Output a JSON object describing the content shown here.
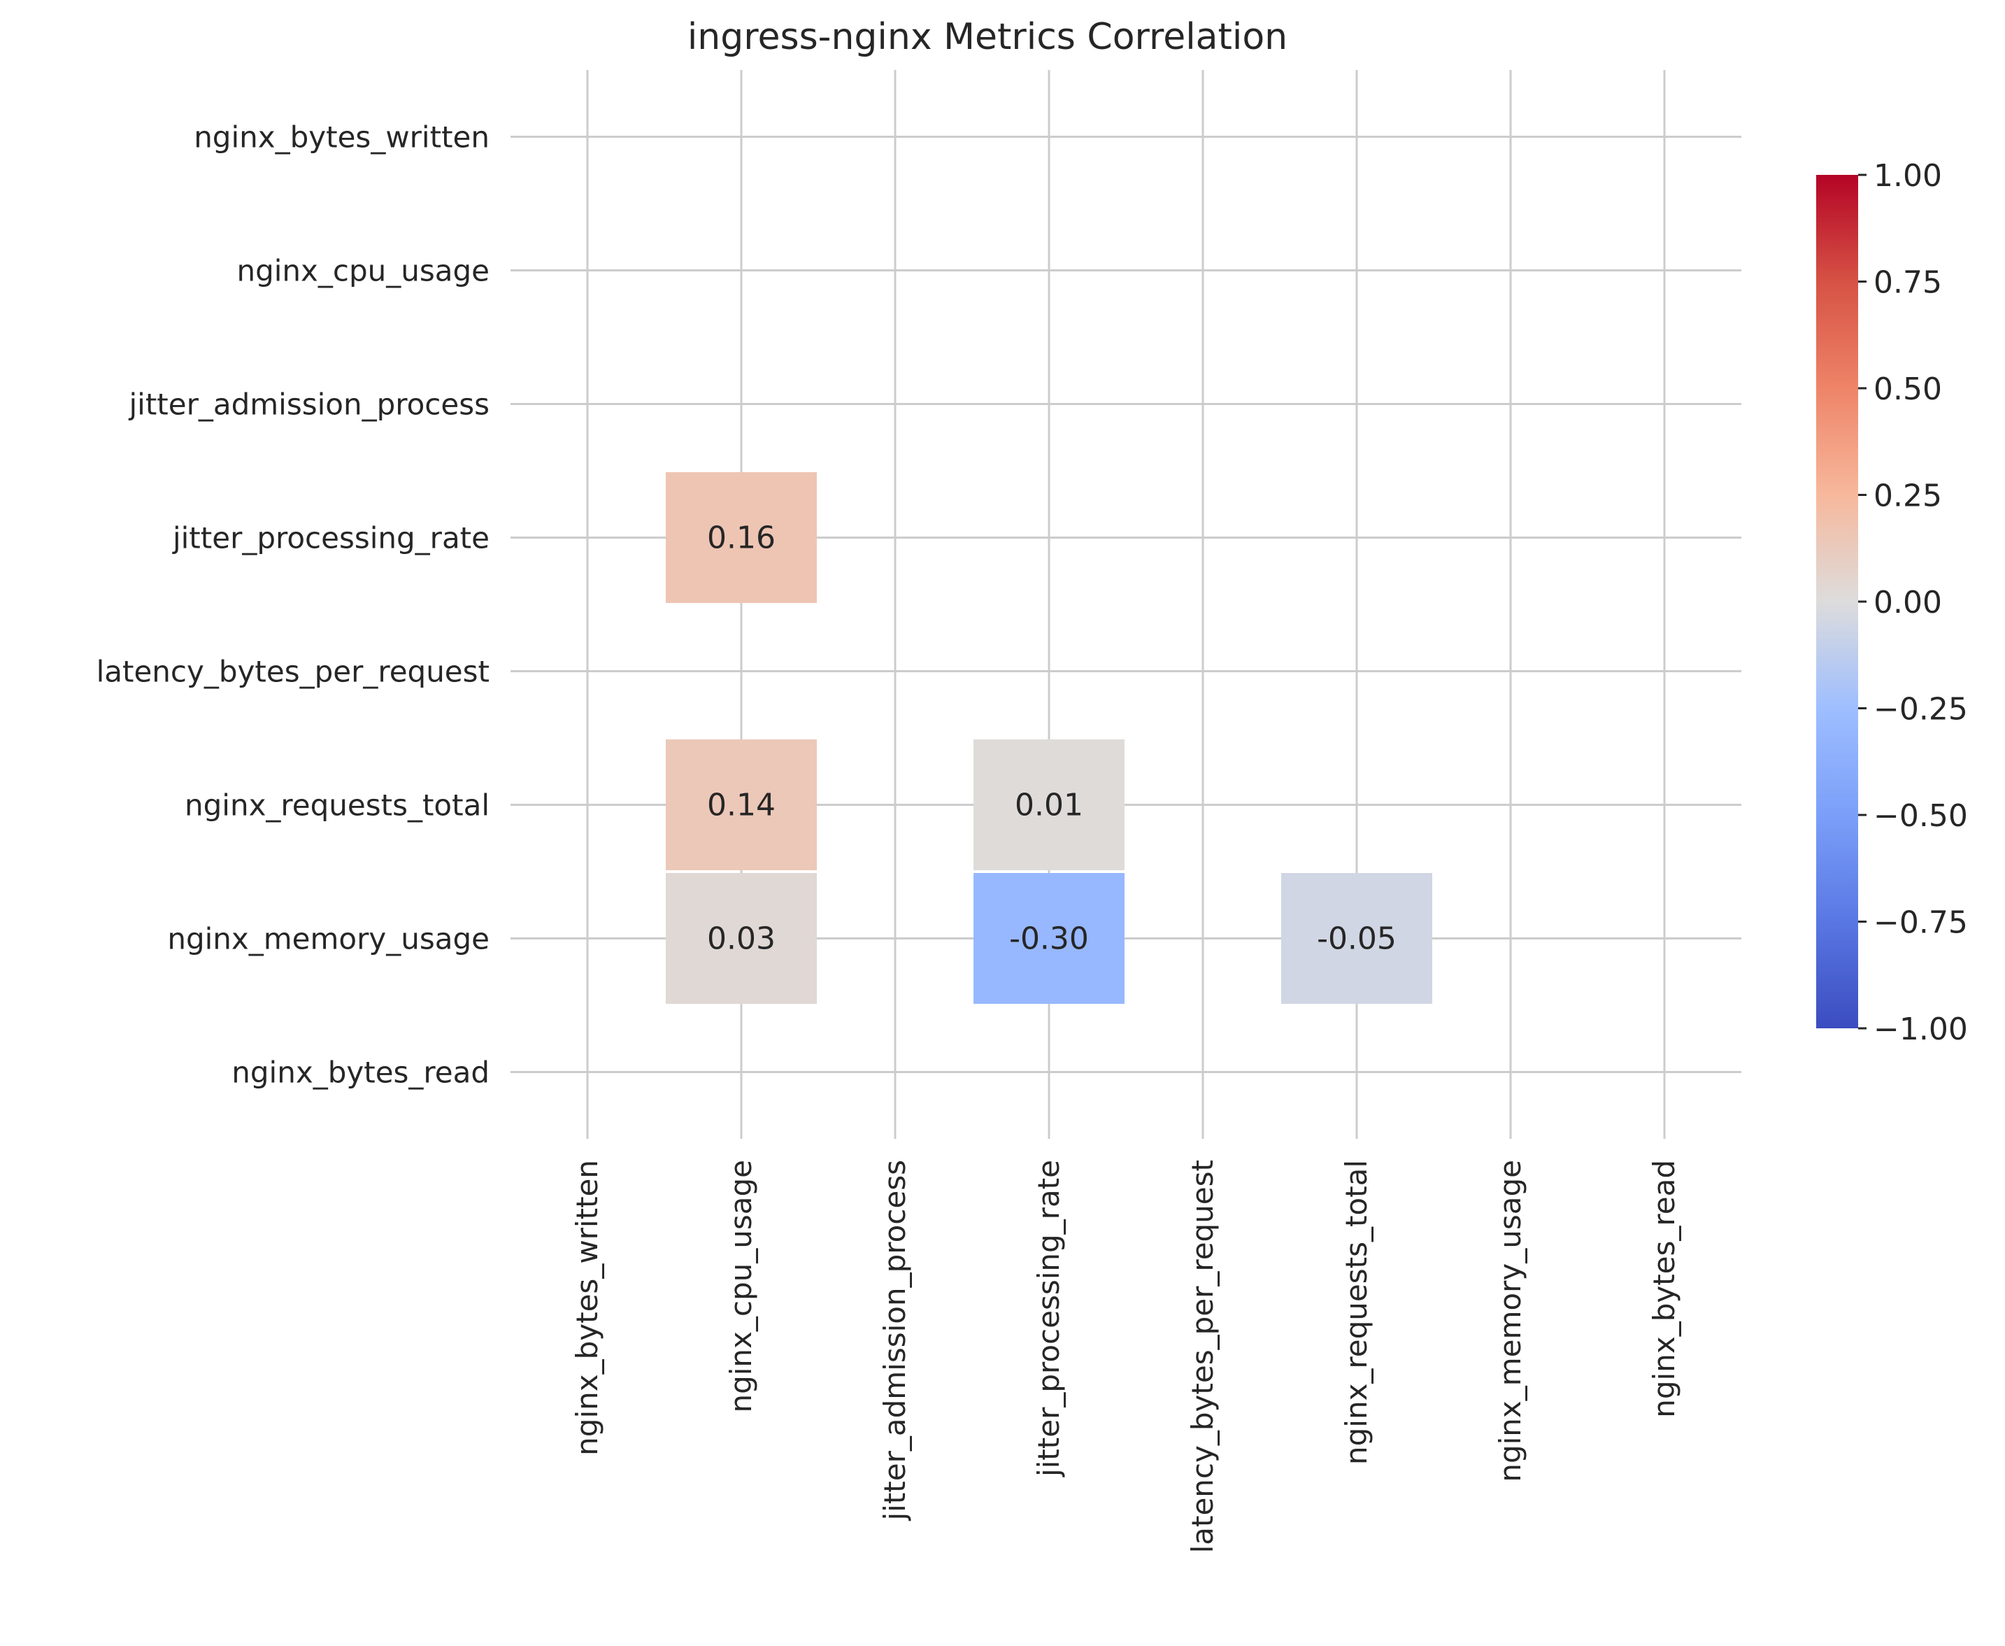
{
  "chart_data": {
    "type": "heatmap",
    "title": "ingress-nginx Metrics Correlation",
    "row_labels": [
      "nginx_bytes_written",
      "nginx_cpu_usage",
      "jitter_admission_process",
      "jitter_processing_rate",
      "latency_bytes_per_request",
      "nginx_requests_total",
      "nginx_memory_usage",
      "nginx_bytes_read"
    ],
    "col_labels": [
      "nginx_bytes_written",
      "nginx_cpu_usage",
      "jitter_admission_process",
      "jitter_processing_rate",
      "latency_bytes_per_request",
      "nginx_requests_total",
      "nginx_memory_usage",
      "nginx_bytes_read"
    ],
    "cells": [
      {
        "row": 3,
        "col": 1,
        "value": 0.16,
        "label": "0.16"
      },
      {
        "row": 5,
        "col": 1,
        "value": 0.14,
        "label": "0.14"
      },
      {
        "row": 5,
        "col": 3,
        "value": 0.01,
        "label": "0.01"
      },
      {
        "row": 6,
        "col": 1,
        "value": 0.03,
        "label": "0.03"
      },
      {
        "row": 6,
        "col": 3,
        "value": -0.3,
        "label": "-0.30"
      },
      {
        "row": 6,
        "col": 5,
        "value": -0.05,
        "label": "-0.05"
      }
    ],
    "colorbar": {
      "range": [
        -1.0,
        1.0
      ],
      "ticks": [
        "1.00",
        "0.75",
        "0.50",
        "0.25",
        "0.00",
        "−0.25",
        "−0.50",
        "−0.75",
        "−1.00"
      ],
      "colormap": "coolwarm"
    },
    "grid": true
  }
}
